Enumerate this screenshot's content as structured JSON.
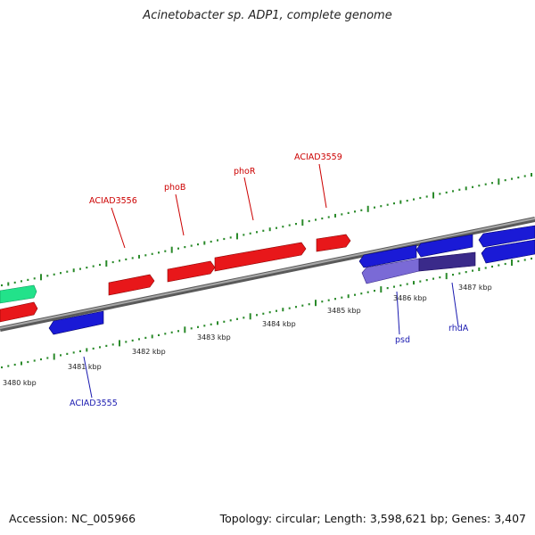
{
  "title": "Acinetobacter sp. ADP1, complete genome",
  "footer": {
    "accession": "Accession: NC_005966",
    "summary": "Topology: circular; Length: 3,598,621 bp; Genes: 3,407"
  },
  "colors": {
    "forward": "#e8171a",
    "reverse": "#1a1ad6",
    "rrna": "#22e28a",
    "highlight": "#7060c8",
    "tick": "#2a8a2a",
    "backbone": "#808080",
    "forward_label": "#cc0000",
    "reverse_label": "#1a1ab0"
  },
  "scale_ticks": [
    "3480 kbp",
    "3481 kbp",
    "3482 kbp",
    "3483 kbp",
    "3484 kbp",
    "3485 kbp",
    "3486 kbp",
    "3487 kbp"
  ],
  "gene_labels": {
    "forward": [
      "ACIAD3556",
      "phoB",
      "phoR",
      "ACIAD3559"
    ],
    "reverse": [
      "ACIAD3555",
      "psd",
      "rhdA"
    ]
  }
}
